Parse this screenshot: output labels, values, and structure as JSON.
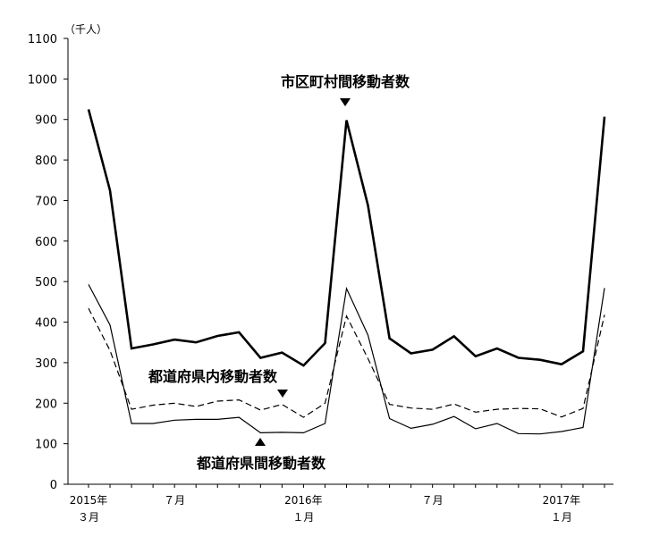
{
  "chart_data": {
    "type": "line",
    "title": "",
    "unit_label": "（千人）",
    "ylim": [
      0,
      1100
    ],
    "y_ticks": [
      0,
      100,
      200,
      300,
      400,
      500,
      600,
      700,
      800,
      900,
      1000,
      1100
    ],
    "x_tick_labels": [
      {
        "index": 0,
        "line1": "2015年",
        "line2": "３月"
      },
      {
        "index": 4,
        "line1": "",
        "line2": "７月"
      },
      {
        "index": 10,
        "line1": "2016年",
        "line2": "１月"
      },
      {
        "index": 16,
        "line1": "",
        "line2": "７月"
      },
      {
        "index": 22,
        "line1": "2017年",
        "line2": "１月"
      }
    ],
    "categories": [
      "2015-03",
      "2015-04",
      "2015-05",
      "2015-06",
      "2015-07",
      "2015-08",
      "2015-09",
      "2015-10",
      "2015-11",
      "2015-12",
      "2016-01",
      "2016-02",
      "2016-03",
      "2016-04",
      "2016-05",
      "2016-06",
      "2016-07",
      "2016-08",
      "2016-09",
      "2016-10",
      "2016-11",
      "2016-12",
      "2017-01",
      "2017-02",
      "2017-03"
    ],
    "series": [
      {
        "name": "市区町村間移動者数",
        "style": "thick-solid",
        "values": [
          925,
          725,
          335,
          345,
          357,
          350,
          366,
          375,
          312,
          325,
          293,
          348,
          898,
          688,
          360,
          323,
          332,
          365,
          316,
          335,
          312,
          307,
          296,
          328,
          907
        ]
      },
      {
        "name": "都道府県内移動者数",
        "style": "dashed",
        "values": [
          434,
          330,
          185,
          195,
          200,
          192,
          205,
          208,
          183,
          197,
          165,
          200,
          415,
          310,
          197,
          188,
          185,
          198,
          178,
          185,
          187,
          186,
          166,
          187,
          418
        ]
      },
      {
        "name": "都道府県間移動者数",
        "style": "thin-solid",
        "values": [
          493,
          393,
          150,
          150,
          158,
          160,
          160,
          165,
          127,
          128,
          127,
          150,
          483,
          368,
          162,
          138,
          148,
          167,
          137,
          150,
          125,
          124,
          130,
          140,
          484
        ]
      }
    ],
    "annotations": [
      {
        "text": "市区町村間移動者数",
        "series": 0,
        "marker": "down"
      },
      {
        "text": "都道府県内移動者数",
        "series": 1,
        "marker": "down"
      },
      {
        "text": "都道府県間移動者数",
        "series": 2,
        "marker": "up"
      }
    ],
    "grid": false
  }
}
